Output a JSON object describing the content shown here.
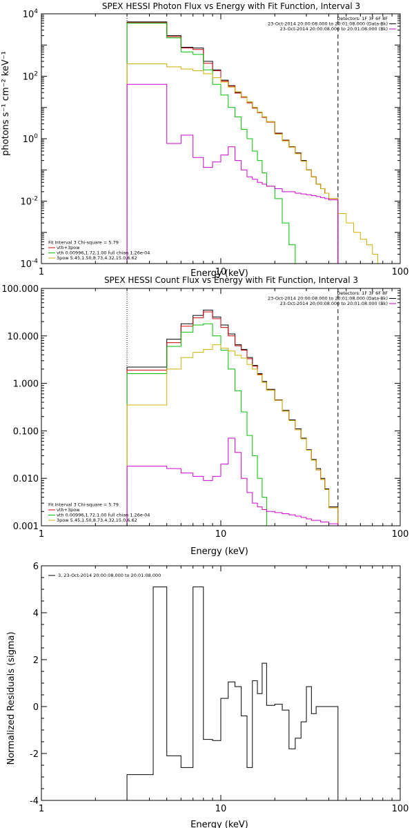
{
  "chart_data": [
    {
      "type": "line",
      "title": "SPEX HESSI Photon Flux vs Energy with Fit Function, Interval 3",
      "xlabel": "Energy (keV)",
      "ylabel": "photons s⁻¹ cm⁻² keV⁻¹",
      "xscale": "log",
      "yscale": "log",
      "xlim": [
        1,
        100
      ],
      "ylim": [
        0.0001,
        10000
      ],
      "xticks": [
        {
          "value": 1,
          "label": "1"
        },
        {
          "value": 10,
          "label": "10"
        },
        {
          "value": 100,
          "label": "100"
        }
      ],
      "yticks": [
        {
          "value": 0.0001,
          "base": "10",
          "exp": "-4"
        },
        {
          "value": 0.01,
          "base": "10",
          "exp": "-2"
        },
        {
          "value": 1,
          "base": "10",
          "exp": "0"
        },
        {
          "value": 100,
          "base": "10",
          "exp": "2"
        },
        {
          "value": 10000,
          "base": "10",
          "exp": "4"
        }
      ],
      "vlines": [
        {
          "x": 3.0,
          "style": "dotted",
          "color": "#000000"
        },
        {
          "x": 45,
          "style": "dashed",
          "color": "#000000"
        }
      ],
      "legend_top_right": [
        {
          "text": "Detectors: 1F 3F 6F 8F",
          "color": "#000000"
        },
        {
          "text": "23-Oct-2014 20:00:08.000 to 20:01:08.000 (Data-Bk)",
          "color": "#000000"
        },
        {
          "text": "23-Oct-2014 20:00:08.000 to 20:01:08.000 (Bk)",
          "color": "#d000d0"
        }
      ],
      "legend_bottom_left": [
        {
          "text": "Fit Interval 3   Chi-square = 5.79",
          "color": "#000000"
        },
        {
          "text": "vth+3pow",
          "color": "#d00000"
        },
        {
          "text": "vth 0.00996,1.72,1.00  full chian 1.26e-04",
          "color": "#00c000"
        },
        {
          "text": "3pow 5.45,1.50,8.73,4.32,15.0,6.62",
          "color": "#d0b000"
        }
      ],
      "series": [
        {
          "name": "23-Oct-2014 20:00:08.000 to 20:01:08.000 (Data-Bk)",
          "color": "#000000",
          "edges": [
            3.0,
            4.0,
            5.0,
            6.0,
            7.0,
            8.0,
            9.0,
            10.0,
            11.0,
            12.0,
            13.0,
            14.0,
            15.0,
            16.0,
            17.0,
            18.0,
            20.0,
            22.0,
            24.0,
            26.0,
            28.0,
            30.0,
            32.0,
            34.0,
            36.0,
            38.0,
            40.0,
            45.0
          ],
          "values": [
            5500,
            5500,
            2000,
            850,
            800,
            300,
            160,
            75,
            50,
            30,
            22,
            15,
            10,
            7,
            5,
            3.5,
            1.5,
            0.9,
            0.55,
            0.35,
            0.2,
            0.1,
            0.06,
            0.035,
            0.025,
            0.018,
            0.012
          ]
        },
        {
          "name": "vth+3pow",
          "color": "#d00000",
          "edges": [
            3.0,
            4.0,
            5.0,
            6.0,
            7.0,
            8.0,
            9.0,
            10.0,
            11.0,
            12.0,
            13.0,
            14.0,
            15.0,
            16.0,
            17.0,
            18.0,
            20.0,
            22.0,
            24.0,
            26.0,
            28.0,
            30.0,
            32.0,
            34.0,
            36.0,
            38.0,
            40.0,
            45.0
          ],
          "values": [
            5200,
            5200,
            1850,
            800,
            720,
            260,
            150,
            70,
            48,
            29,
            21,
            14,
            9.5,
            6.8,
            4.8,
            3.4,
            1.45,
            0.88,
            0.54,
            0.34,
            0.19,
            0.1,
            0.06,
            0.035,
            0.025,
            0.018,
            0.012
          ]
        },
        {
          "name": "vth",
          "color": "#00c000",
          "edges": [
            3.0,
            4.0,
            5.0,
            6.0,
            7.0,
            8.0,
            9.0,
            10.0,
            11.0,
            12.0,
            13.0,
            14.0,
            15.0,
            16.0,
            17.0,
            18.0,
            20.0,
            22.0,
            24.0,
            26.0
          ],
          "values": [
            5000,
            5000,
            1700,
            600,
            500,
            160,
            55,
            25,
            10,
            5,
            2,
            1,
            0.4,
            0.2,
            0.08,
            0.03,
            0.012,
            0.002,
            0.0004,
            0.0001
          ]
        },
        {
          "name": "3pow",
          "color": "#d0b000",
          "edges": [
            3.0,
            4.0,
            5.0,
            6.0,
            7.0,
            8.0,
            9.0,
            10.0,
            11.0,
            12.0,
            13.0,
            14.0,
            15.0,
            16.0,
            17.0,
            18.0,
            20.0,
            22.0,
            24.0,
            26.0,
            28.0,
            30.0,
            32.0,
            34.0,
            36.0,
            38.0,
            40.0,
            45.0,
            50.0,
            55.0,
            60.0,
            65.0,
            70.0,
            75.0,
            80.0
          ],
          "values": [
            250,
            250,
            200,
            170,
            150,
            120,
            90,
            65,
            45,
            32,
            22,
            15,
            10,
            7,
            5,
            3.5,
            1.4,
            0.85,
            0.53,
            0.33,
            0.19,
            0.1,
            0.06,
            0.035,
            0.025,
            0.018,
            0.012,
            0.004,
            0.002,
            0.001,
            0.0006,
            0.0004,
            0.0002,
            0.0001
          ]
        },
        {
          "name": "23-Oct-2014 20:00:08.000 to 20:01:08.000 (Bk)",
          "color": "#d000d0",
          "edges": [
            3.0,
            4.0,
            5.0,
            6.0,
            7.0,
            8.0,
            9.0,
            10.0,
            11.0,
            12.0,
            13.0,
            14.0,
            15.0,
            16.0,
            17.0,
            18.0,
            20.0,
            22.0,
            24.0,
            26.0,
            28.0,
            30.0,
            32.0,
            34.0,
            36.0,
            38.0,
            40.0,
            45.0
          ],
          "values": [
            55,
            55,
            0.7,
            1.3,
            0.25,
            0.12,
            0.18,
            0.3,
            0.55,
            0.2,
            0.1,
            0.06,
            0.05,
            0.04,
            0.035,
            0.03,
            0.025,
            0.02,
            0.02,
            0.018,
            0.017,
            0.016,
            0.015,
            0.014,
            0.013,
            0.012,
            0.011
          ]
        }
      ]
    },
    {
      "type": "line",
      "title": "SPEX HESSI Count Flux vs Energy with Fit Function, Interval 3",
      "xlabel": "Energy (keV)",
      "ylabel": "",
      "xscale": "log",
      "yscale": "log",
      "xlim": [
        1,
        100
      ],
      "ylim": [
        0.001,
        100
      ],
      "xticks": [
        {
          "value": 1,
          "label": "1"
        },
        {
          "value": 10,
          "label": "10"
        },
        {
          "value": 100,
          "label": "100"
        }
      ],
      "yticks": [
        {
          "value": 0.001,
          "label": "0.001"
        },
        {
          "value": 0.01,
          "label": "0.010"
        },
        {
          "value": 0.1,
          "label": "0.100"
        },
        {
          "value": 1,
          "label": "1.000"
        },
        {
          "value": 10,
          "label": "10.000"
        },
        {
          "value": 100,
          "label": "100.000"
        }
      ],
      "vlines": [
        {
          "x": 3.0,
          "style": "dotted",
          "color": "#000000"
        },
        {
          "x": 45,
          "style": "dashed",
          "color": "#000000"
        }
      ],
      "legend_top_right": [
        {
          "text": "Detectors: 1F 3F 6F 8F",
          "color": "#000000"
        },
        {
          "text": "23-Oct-2014 20:00:08.000 to 20:01:08.000 (Data-Bk)",
          "color": "#000000"
        },
        {
          "text": "23-Oct-2014 20:00:08.000 to 20:01:08.000 (Bk)",
          "color": "#d000d0"
        }
      ],
      "legend_bottom_left": [
        {
          "text": "Fit Interval 3   Chi-square = 5.79",
          "color": "#000000"
        },
        {
          "text": "vth+3pow",
          "color": "#d00000"
        },
        {
          "text": "vth 0.00996,1.72,1.00  full chian 1.26e-04",
          "color": "#00c000"
        },
        {
          "text": "3pow 5.45,1.50,8.73,4.32,15.0,6.62",
          "color": "#d0b000"
        }
      ],
      "series": [
        {
          "name": "23-Oct-2014 20:00:08.000 to 20:01:08.000 (Data-Bk)",
          "color": "#000000",
          "edges": [
            3.0,
            4.0,
            5.0,
            6.0,
            7.0,
            8.0,
            9.0,
            10.0,
            11.0,
            12.0,
            13.0,
            14.0,
            15.0,
            16.0,
            17.0,
            18.0,
            20.0,
            22.0,
            24.0,
            26.0,
            28.0,
            30.0,
            32.0,
            34.0,
            36.0,
            38.0,
            40.0,
            45.0
          ],
          "values": [
            2.2,
            2.2,
            8.5,
            18,
            27,
            35,
            25,
            17,
            11,
            6.5,
            5.2,
            3.5,
            2.4,
            1.6,
            1.1,
            0.75,
            0.45,
            0.27,
            0.17,
            0.11,
            0.07,
            0.04,
            0.025,
            0.016,
            0.01,
            0.006,
            0.0025
          ]
        },
        {
          "name": "vth+3pow",
          "color": "#d00000",
          "edges": [
            3.0,
            4.0,
            5.0,
            6.0,
            7.0,
            8.0,
            9.0,
            10.0,
            11.0,
            12.0,
            13.0,
            14.0,
            15.0,
            16.0,
            17.0,
            18.0,
            20.0,
            22.0,
            24.0,
            26.0,
            28.0,
            30.0,
            32.0,
            34.0,
            36.0,
            38.0,
            40.0,
            45.0
          ],
          "values": [
            1.9,
            1.9,
            7.2,
            16,
            24,
            32,
            23,
            15,
            10,
            6.2,
            5,
            3.3,
            2.3,
            1.55,
            1.05,
            0.72,
            0.44,
            0.26,
            0.165,
            0.105,
            0.068,
            0.039,
            0.024,
            0.015,
            0.0095,
            0.0058,
            0.0024
          ]
        },
        {
          "name": "vth",
          "color": "#00c000",
          "edges": [
            3.0,
            4.0,
            5.0,
            6.0,
            7.0,
            8.0,
            9.0,
            10.0,
            11.0,
            12.0,
            13.0,
            14.0,
            15.0,
            16.0,
            17.0,
            18.0
          ],
          "values": [
            1.6,
            1.6,
            6,
            12,
            17,
            18,
            10,
            5,
            2,
            0.7,
            0.25,
            0.08,
            0.03,
            0.01,
            0.004,
            0.001
          ]
        },
        {
          "name": "3pow",
          "color": "#d0b000",
          "edges": [
            3.0,
            4.0,
            5.0,
            6.0,
            7.0,
            8.0,
            9.0,
            10.0,
            11.0,
            12.0,
            13.0,
            14.0,
            15.0,
            16.0,
            17.0,
            18.0,
            20.0,
            22.0,
            24.0,
            26.0,
            28.0,
            30.0,
            32.0,
            34.0,
            36.0,
            38.0,
            40.0,
            45.0
          ],
          "values": [
            0.35,
            0.35,
            2,
            3.5,
            4.5,
            5.2,
            6.5,
            5.5,
            4.8,
            3.9,
            3.4,
            2.5,
            2.0,
            1.5,
            1.05,
            0.72,
            0.44,
            0.26,
            0.165,
            0.105,
            0.068,
            0.039,
            0.024,
            0.015,
            0.0095,
            0.0058,
            0.0024
          ]
        },
        {
          "name": "23-Oct-2014 20:00:08.000 to 20:01:08.000 (Bk)",
          "color": "#d000d0",
          "edges": [
            3.0,
            4.0,
            5.0,
            6.0,
            7.0,
            8.0,
            9.0,
            10.0,
            11.0,
            12.0,
            13.0,
            14.0,
            15.0,
            16.0,
            17.0,
            18.0,
            20.0,
            22.0,
            24.0,
            26.0,
            28.0,
            30.0,
            32.0,
            34.0,
            36.0,
            38.0,
            40.0,
            45.0
          ],
          "values": [
            0.018,
            0.018,
            0.016,
            0.013,
            0.011,
            0.009,
            0.011,
            0.02,
            0.07,
            0.035,
            0.01,
            0.005,
            0.003,
            0.0025,
            0.0022,
            0.002,
            0.0019,
            0.0018,
            0.0017,
            0.0016,
            0.0015,
            0.0014,
            0.0013,
            0.0013,
            0.0012,
            0.0012,
            0.0011
          ]
        }
      ]
    },
    {
      "type": "line",
      "title": "",
      "xlabel": "Energy (keV)",
      "ylabel": "Normalized Residuals (sigma)",
      "xscale": "log",
      "yscale": "linear",
      "xlim": [
        1,
        100
      ],
      "ylim": [
        -4,
        6
      ],
      "xticks": [
        {
          "value": 1,
          "label": "1"
        },
        {
          "value": 10,
          "label": "10"
        },
        {
          "value": 100,
          "label": "100"
        }
      ],
      "yticks": [
        {
          "value": -4,
          "label": "-4"
        },
        {
          "value": -2,
          "label": "-2"
        },
        {
          "value": 0,
          "label": "0"
        },
        {
          "value": 2,
          "label": "2"
        },
        {
          "value": 4,
          "label": "4"
        },
        {
          "value": 6,
          "label": "6"
        }
      ],
      "legend_top_left": [
        {
          "text": "3, 23-Oct-2014 20:00:08.000 to 20:01:08.000",
          "color": "#000000"
        }
      ],
      "series": [
        {
          "name": "3, 23-Oct-2014 20:00:08.000 to 20:01:08.000",
          "color": "#000000",
          "edges": [
            3.0,
            4.2,
            5.0,
            6.0,
            7.0,
            8.0,
            9.0,
            10.0,
            11.0,
            12.0,
            13.0,
            14.0,
            15.0,
            16.0,
            17.0,
            18.0,
            20.0,
            22.0,
            24.0,
            26.0,
            28.0,
            30.0,
            32.0,
            34.0,
            36.0,
            38.0,
            40.0,
            45.0
          ],
          "values": [
            -2.9,
            5.1,
            -2.1,
            -2.6,
            5.1,
            -1.4,
            -1.45,
            0.35,
            1.05,
            0.85,
            -0.4,
            -2.6,
            1.1,
            0.55,
            1.85,
            0.05,
            0.1,
            -0.15,
            -1.8,
            -1.35,
            -0.65,
            0.85,
            -0.3,
            0.0,
            0.0,
            0.0,
            0.0
          ]
        }
      ]
    }
  ]
}
